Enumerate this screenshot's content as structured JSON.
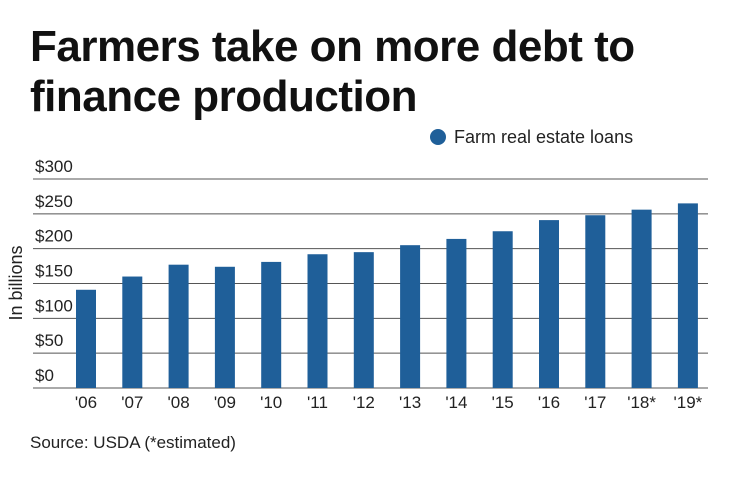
{
  "chart_data": {
    "type": "bar",
    "title": "Farmers take on more debt to finance production",
    "ylabel": "In billions",
    "xlabel": "",
    "categories": [
      "'06",
      "'07",
      "'08",
      "'09",
      "'10",
      "'11",
      "'12",
      "'13",
      "'14",
      "'15",
      "'16",
      "'17",
      "'18*",
      "'19*"
    ],
    "series": [
      {
        "name": "Farm real estate loans",
        "color": "#1f5f99",
        "values": [
          141,
          160,
          177,
          174,
          181,
          192,
          195,
          205,
          214,
          225,
          241,
          248,
          256,
          265
        ]
      }
    ],
    "ylim": [
      0,
      300
    ],
    "yticks": [
      0,
      50,
      100,
      150,
      200,
      250,
      300
    ],
    "ytick_labels": [
      "$0",
      "$50",
      "$100",
      "$150",
      "$200",
      "$250",
      "$300"
    ],
    "grid": true,
    "legend_position": "top-right"
  },
  "source": "Source: USDA (*estimated)"
}
